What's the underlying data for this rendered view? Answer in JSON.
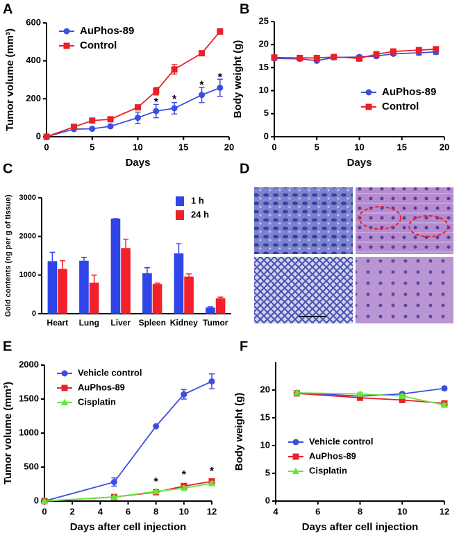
{
  "chart_data": [
    {
      "panel": "A",
      "type": "line",
      "xlabel": "Days",
      "ylabel": "Tumor volume (mm³)",
      "x": [
        0,
        3,
        5,
        7,
        10,
        12,
        14,
        17,
        19
      ],
      "xlim": [
        0,
        20
      ],
      "xticks": [
        0,
        5,
        10,
        15,
        20
      ],
      "ylim": [
        0,
        600
      ],
      "yticks": [
        0,
        200,
        400,
        600
      ],
      "legend": "upper left",
      "series": [
        {
          "name": "AuPhos-89",
          "color": "#3b4fe0",
          "marker": "circle",
          "values": [
            0,
            40,
            42,
            55,
            100,
            135,
            150,
            220,
            258
          ],
          "errors": [
            0,
            5,
            5,
            8,
            30,
            35,
            30,
            40,
            45
          ]
        },
        {
          "name": "Control",
          "color": "#e8202a",
          "marker": "square",
          "values": [
            0,
            52,
            85,
            92,
            155,
            240,
            355,
            440,
            555
          ],
          "errors": [
            0,
            5,
            5,
            5,
            10,
            20,
            25,
            10,
            15
          ]
        }
      ],
      "annotations": [
        {
          "text": "*",
          "x": 12,
          "y": 180
        },
        {
          "text": "*",
          "x": 14,
          "y": 195
        },
        {
          "text": "*",
          "x": 17,
          "y": 270
        },
        {
          "text": "*",
          "x": 19,
          "y": 310
        }
      ]
    },
    {
      "panel": "B",
      "type": "line",
      "xlabel": "Days",
      "ylabel": "Body weight (g)",
      "x": [
        0,
        3,
        5,
        7,
        10,
        12,
        14,
        17,
        19
      ],
      "xlim": [
        0,
        20
      ],
      "xticks": [
        0,
        5,
        10,
        15,
        20
      ],
      "ylim": [
        0,
        25
      ],
      "yticks": [
        0,
        5,
        10,
        15,
        20,
        25
      ],
      "legend": "lower right",
      "series": [
        {
          "name": "AuPhos-89",
          "color": "#3b4fe0",
          "marker": "circle",
          "values": [
            17,
            16.9,
            16.5,
            17.2,
            17.3,
            17.5,
            18,
            18.2,
            18.4
          ],
          "errors": [
            0.4,
            0.3,
            0.3,
            0.3,
            0.4,
            0.4,
            0.4,
            0.5,
            0.5
          ]
        },
        {
          "name": "Control",
          "color": "#e8202a",
          "marker": "square",
          "values": [
            17.2,
            17.1,
            17.1,
            17.3,
            17,
            17.9,
            18.5,
            18.8,
            19
          ],
          "errors": [
            0.3,
            0.3,
            0.3,
            0.3,
            0.6,
            0.4,
            0.3,
            0.3,
            0.4
          ]
        }
      ]
    },
    {
      "panel": "C",
      "type": "bar",
      "ylabel": "Gold contents (ng per g of tissue)",
      "categories": [
        "Heart",
        "Lung",
        "Liver",
        "Spleen",
        "Kidney",
        "Tumor"
      ],
      "ylim": [
        0,
        3000
      ],
      "yticks": [
        0,
        1000,
        2000,
        3000
      ],
      "legend": "upper right",
      "series": [
        {
          "name": "1 h",
          "color": "#2f45e8",
          "values": [
            1360,
            1370,
            2460,
            1050,
            1560,
            160
          ],
          "errors": [
            230,
            90,
            0,
            140,
            250,
            20
          ]
        },
        {
          "name": "24 h",
          "color": "#f2202a",
          "values": [
            1160,
            800,
            1700,
            770,
            960,
            400
          ],
          "errors": [
            210,
            200,
            230,
            20,
            70,
            30
          ]
        }
      ]
    },
    {
      "panel": "E",
      "type": "line",
      "xlabel": "Days after cell injection",
      "ylabel": "Tumor volume (mm³)",
      "x": [
        0,
        5,
        8,
        10,
        12
      ],
      "xlim": [
        0,
        12
      ],
      "xticks": [
        0,
        2,
        4,
        6,
        8,
        10,
        12
      ],
      "ylim": [
        0,
        2000
      ],
      "yticks": [
        0,
        500,
        1000,
        1500,
        2000
      ],
      "legend": "upper left",
      "series": [
        {
          "name": "Vehicle control",
          "color": "#3b4fe0",
          "marker": "circle",
          "values": [
            0,
            280,
            1100,
            1570,
            1760
          ],
          "errors": [
            0,
            60,
            0,
            70,
            110
          ]
        },
        {
          "name": "AuPhos-89",
          "color": "#e8202a",
          "marker": "square",
          "values": [
            0,
            60,
            130,
            220,
            290
          ],
          "errors": [
            0,
            10,
            20,
            40,
            30
          ]
        },
        {
          "name": "Cisplatin",
          "color": "#66e63a",
          "marker": "triangle",
          "values": [
            0,
            60,
            140,
            190,
            260
          ],
          "errors": [
            0,
            10,
            15,
            30,
            25
          ]
        }
      ],
      "annotations": [
        {
          "text": "*",
          "x": 8,
          "y": 280
        },
        {
          "text": "*",
          "x": 10,
          "y": 380
        },
        {
          "text": "*",
          "x": 12,
          "y": 430
        }
      ]
    },
    {
      "panel": "F",
      "type": "line",
      "xlabel": "Days after cell injection",
      "ylabel": "Body weight (g)",
      "x": [
        5,
        8,
        10,
        12
      ],
      "xlim": [
        4,
        12
      ],
      "xticks": [
        4,
        6,
        8,
        10,
        12
      ],
      "ylim": [
        0,
        25
      ],
      "yticks": [
        0,
        5,
        10,
        15,
        20
      ],
      "legend": "lower left",
      "series": [
        {
          "name": "Vehicle control",
          "color": "#3b4fe0",
          "marker": "circle",
          "values": [
            19.5,
            18.9,
            19.3,
            20.3
          ],
          "errors": [
            0.3,
            0.3,
            0.3,
            0.3
          ]
        },
        {
          "name": "AuPhos-89",
          "color": "#e8202a",
          "marker": "square",
          "values": [
            19.4,
            18.6,
            18.2,
            17.6
          ],
          "errors": [
            0.3,
            0.3,
            0.3,
            0.3
          ]
        },
        {
          "name": "Cisplatin",
          "color": "#66e63a",
          "marker": "triangle",
          "values": [
            19.5,
            19.3,
            18.9,
            17.3
          ],
          "errors": [
            0.3,
            0.3,
            0.3,
            0.3
          ]
        }
      ]
    }
  ],
  "image_panel": {
    "panel": "D"
  }
}
